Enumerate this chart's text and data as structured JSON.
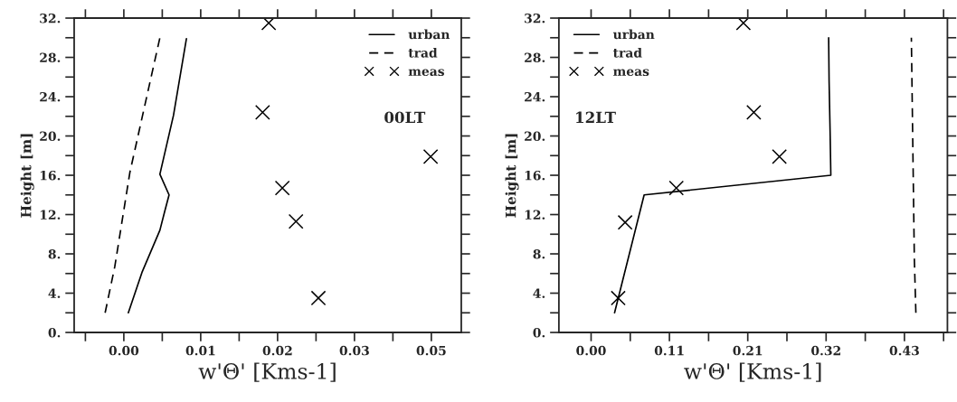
{
  "chart_data": [
    {
      "type": "line",
      "xlabel": "w'Θ' [Kms-1]",
      "ylabel": "Height [m]",
      "annotations": [
        "00LT"
      ],
      "legend": "top right",
      "grid": false,
      "xlim": [
        -0.0073,
        0.0496
      ],
      "ylim": [
        0,
        32
      ],
      "xticks": [
        {
          "value": -0.00565,
          "label": null
        },
        {
          "value": 0,
          "label": "0.00"
        },
        {
          "value": 0.00565,
          "label": null
        },
        {
          "value": 0.0113,
          "label": "0.01"
        },
        {
          "value": 0.01695,
          "label": null
        },
        {
          "value": 0.0226,
          "label": "0.02"
        },
        {
          "value": 0.02825,
          "label": null
        },
        {
          "value": 0.0339,
          "label": "0.03"
        },
        {
          "value": 0.03955,
          "label": null
        },
        {
          "value": 0.0452,
          "label": "0.05"
        }
      ],
      "yticks": [
        {
          "value": 0,
          "label": "0."
        },
        {
          "value": 2,
          "label": null
        },
        {
          "value": 4,
          "label": "4."
        },
        {
          "value": 6,
          "label": null
        },
        {
          "value": 8,
          "label": "8."
        },
        {
          "value": 10,
          "label": null
        },
        {
          "value": 12,
          "label": "12."
        },
        {
          "value": 14,
          "label": null
        },
        {
          "value": 16,
          "label": "16."
        },
        {
          "value": 18,
          "label": null
        },
        {
          "value": 20,
          "label": "20."
        },
        {
          "value": 22,
          "label": null
        },
        {
          "value": 24,
          "label": "24."
        },
        {
          "value": 26,
          "label": null
        },
        {
          "value": 28,
          "label": "28."
        },
        {
          "value": 30,
          "label": null
        },
        {
          "value": 32,
          "label": "32."
        }
      ],
      "series": [
        {
          "name": "urban",
          "line_style": "solid",
          "marker": "none",
          "color": "#000000",
          "x": [
            0.00066,
            0.00266,
            0.0053,
            0.006,
            0.00665,
            0.0053,
            0.0073,
            0.0092
          ],
          "values": [
            2.0,
            6.1,
            10.4,
            12.3,
            14.0,
            16.1,
            22.1,
            29.9
          ]
        },
        {
          "name": "trad",
          "line_style": "dashed",
          "marker": "none",
          "color": "#000000",
          "x": [
            -0.00275,
            -0.00133,
            0.00089,
            0.0053
          ],
          "values": [
            2.0,
            6.7,
            16.3,
            30.0
          ]
        },
        {
          "name": "meas",
          "type": "scatter",
          "marker": "cross",
          "color": "#000000",
          "x": [
            0.0286,
            0.0253,
            0.0233,
            0.0451,
            0.0204,
            0.0213
          ],
          "values": [
            3.5,
            11.3,
            14.7,
            17.9,
            22.4,
            31.5
          ]
        }
      ]
    },
    {
      "type": "line",
      "xlabel": "w'Θ' [Kms-1]",
      "ylabel": "Height [m]",
      "annotations": [
        "12LT"
      ],
      "legend": "top left",
      "grid": false,
      "xlim": [
        -0.0442,
        0.489
      ],
      "ylim": [
        0,
        32
      ],
      "xticks": [
        {
          "value": 0,
          "label": "0.00"
        },
        {
          "value": 0.05375,
          "label": null
        },
        {
          "value": 0.1075,
          "label": "0.11"
        },
        {
          "value": 0.16125,
          "label": null
        },
        {
          "value": 0.215,
          "label": "0.21"
        },
        {
          "value": 0.26875,
          "label": null
        },
        {
          "value": 0.3225,
          "label": "0.32"
        },
        {
          "value": 0.37625,
          "label": null
        },
        {
          "value": 0.43,
          "label": "0.43"
        },
        {
          "value": 0.48375,
          "label": null
        }
      ],
      "yticks": [
        {
          "value": 0,
          "label": "0."
        },
        {
          "value": 2,
          "label": null
        },
        {
          "value": 4,
          "label": "4."
        },
        {
          "value": 6,
          "label": null
        },
        {
          "value": 8,
          "label": "8."
        },
        {
          "value": 10,
          "label": null
        },
        {
          "value": 12,
          "label": "12."
        },
        {
          "value": 14,
          "label": null
        },
        {
          "value": 16,
          "label": "16."
        },
        {
          "value": 18,
          "label": null
        },
        {
          "value": 20,
          "label": "20."
        },
        {
          "value": 22,
          "label": null
        },
        {
          "value": 24,
          "label": "24."
        },
        {
          "value": 26,
          "label": null
        },
        {
          "value": 28,
          "label": "28."
        },
        {
          "value": 30,
          "label": null
        },
        {
          "value": 32,
          "label": "32."
        }
      ],
      "series": [
        {
          "name": "urban",
          "line_style": "solid",
          "marker": "none",
          "color": "#000000",
          "x": [
            0.0322,
            0.0728,
            0.329,
            0.328,
            0.3266,
            0.326
          ],
          "values": [
            2.0,
            14.0,
            16.0,
            20.4,
            25.6,
            30.0
          ]
        },
        {
          "name": "trad",
          "line_style": "dashed",
          "marker": "none",
          "color": "#000000",
          "x": [
            0.4457,
            0.4436,
            0.4395
          ],
          "values": [
            2.0,
            7.5,
            30.0
          ]
        },
        {
          "name": "meas",
          "type": "scatter",
          "marker": "cross",
          "color": "#000000",
          "x": [
            0.0372,
            0.0467,
            0.117,
            0.2584,
            0.2233,
            0.209
          ],
          "values": [
            3.5,
            11.2,
            14.7,
            17.9,
            22.4,
            31.5
          ]
        }
      ]
    }
  ]
}
